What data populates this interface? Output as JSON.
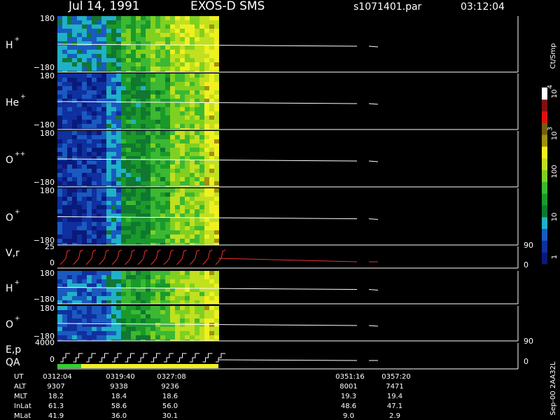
{
  "header": {
    "date": "Jul 14, 1991",
    "instrument": "EXOS-D SMS",
    "file": "s1071401.par",
    "time": "03:12:04"
  },
  "panels": [
    {
      "label": "H",
      "sup": "+",
      "top": "180",
      "bottom": "−180"
    },
    {
      "label": "He",
      "sup": "+",
      "top": "180",
      "bottom": "−180"
    },
    {
      "label": "O",
      "sup": "++",
      "top": "180",
      "bottom": "−180"
    },
    {
      "label": "O",
      "sup": "+",
      "top": "180",
      "bottom": "−180"
    },
    {
      "label": "H",
      "sup": "+",
      "top": "180",
      "bottom": "−180"
    },
    {
      "label": "O",
      "sup": "+",
      "top": "180",
      "bottom": "−180"
    }
  ],
  "vr": {
    "label": "V,r",
    "left_top": "25",
    "left_bottom": "0",
    "right_top": "90",
    "right_bottom": "0"
  },
  "ep": {
    "label": "E,p",
    "qa": "QA",
    "left_top": "4000",
    "left_bottom": "0",
    "right_top": "90",
    "right_bottom": "0"
  },
  "colorbar": {
    "unit": "Ct/Smp",
    "labels": [
      "1",
      "10",
      "100"
    ],
    "powers": [
      {
        "base": "10",
        "exp": "3"
      },
      {
        "base": "10",
        "exp": "4"
      }
    ]
  },
  "footer": {
    "row_labels": [
      "UT",
      "ALT",
      "MLT",
      "InLat",
      "MLat"
    ],
    "columns": [
      [
        "0312:04",
        "9307",
        "18.2",
        "61.3",
        "41.9"
      ],
      [
        "0319:40",
        "9338",
        "18.4",
        "58.6",
        "36.0"
      ],
      [
        "0327:08",
        "9236",
        "18.6",
        "56.0",
        "30.1"
      ],
      [
        "0351:16",
        "8001",
        "19.3",
        "48.6",
        "9.0"
      ],
      [
        "0357:20",
        "7471",
        "19.4",
        "47.1",
        "2.9"
      ]
    ]
  },
  "stamp": "Sep-00  2AA32L"
}
